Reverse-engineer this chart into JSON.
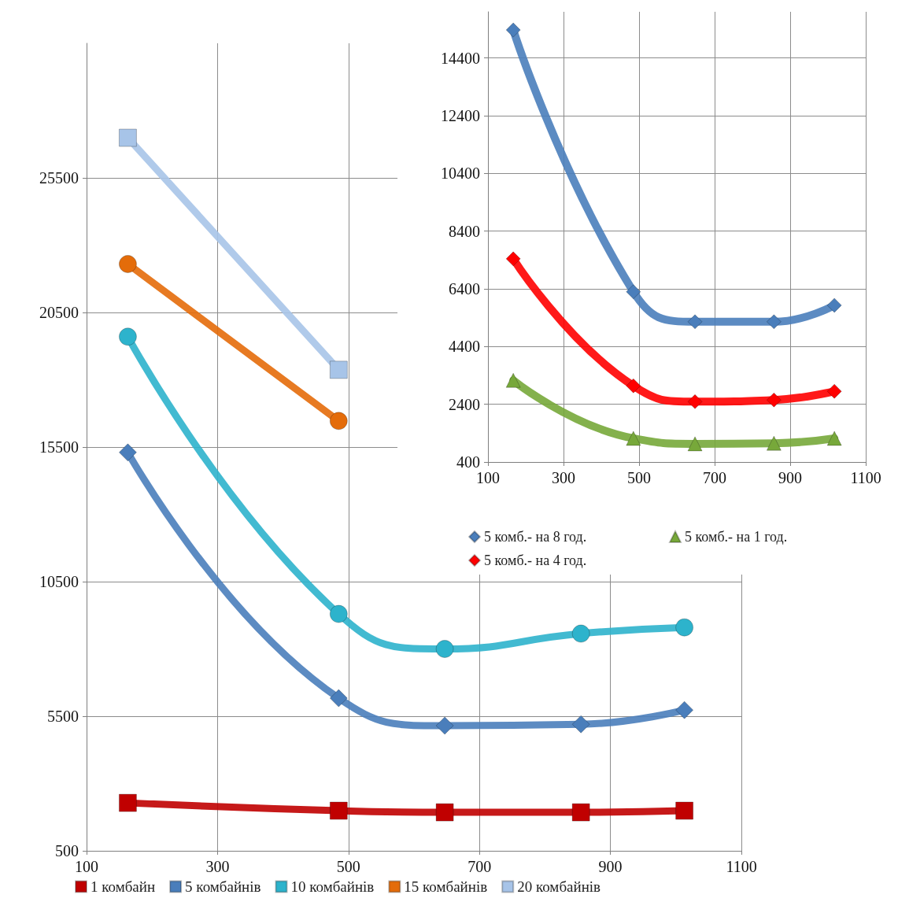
{
  "chart_data": [
    {
      "type": "line",
      "x": [
        163,
        485,
        647,
        855,
        1013
      ],
      "xlim": [
        100,
        1100
      ],
      "xticks": [
        100,
        300,
        500,
        700,
        900,
        1100
      ],
      "ylim": [
        500,
        30500
      ],
      "yticks": [
        500,
        5500,
        10500,
        15500,
        20500,
        25500
      ],
      "grid": true,
      "legend": "bottom",
      "line_style": "solid",
      "series": [
        {
          "name": "1 комбайн",
          "color": "#c00000",
          "marker": "square",
          "values": [
            2280,
            1990,
            1930,
            1930,
            1990
          ]
        },
        {
          "name": "5 комбайнів",
          "color": "#4a7ebb",
          "marker": "diamond",
          "values": [
            15300,
            6170,
            5150,
            5200,
            5730
          ]
        },
        {
          "name": "10 комбайнів",
          "color": "#2db3cc",
          "marker": "circle",
          "values": [
            19600,
            9300,
            8000,
            8570,
            8800
          ]
        },
        {
          "name": "15 комбайнів",
          "color": "#e46c0a",
          "marker": "circle",
          "values": [
            22300,
            16470,
            null,
            null,
            null
          ]
        },
        {
          "name": "20 комбайнів",
          "color": "#a7c4e8",
          "marker": "square",
          "values": [
            26990,
            18370,
            null,
            null,
            null
          ]
        }
      ]
    },
    {
      "type": "line",
      "x": [
        167,
        485,
        648,
        857,
        1017
      ],
      "xlim": [
        100,
        1100
      ],
      "xticks": [
        100,
        300,
        500,
        700,
        900,
        1100
      ],
      "ylim": [
        400,
        16000
      ],
      "yticks": [
        400,
        2400,
        4400,
        6400,
        8400,
        10400,
        12400,
        14400
      ],
      "grid": true,
      "legend": "bottom",
      "line_style": "solid",
      "series": [
        {
          "name": "5 комб.- на 8 год.",
          "color": "#4a7ebb",
          "marker": "diamond",
          "values": [
            15370,
            6300,
            5260,
            5260,
            5830
          ]
        },
        {
          "name": "5 комб.- на 4 год.",
          "color": "#ff0000",
          "marker": "diamond",
          "values": [
            7440,
            3040,
            2490,
            2550,
            2850
          ]
        },
        {
          "name": "5 комб.- на 1 год.",
          "color": "#77a83a",
          "marker": "triangle",
          "values": [
            3230,
            1220,
            1030,
            1050,
            1220
          ]
        }
      ]
    }
  ]
}
